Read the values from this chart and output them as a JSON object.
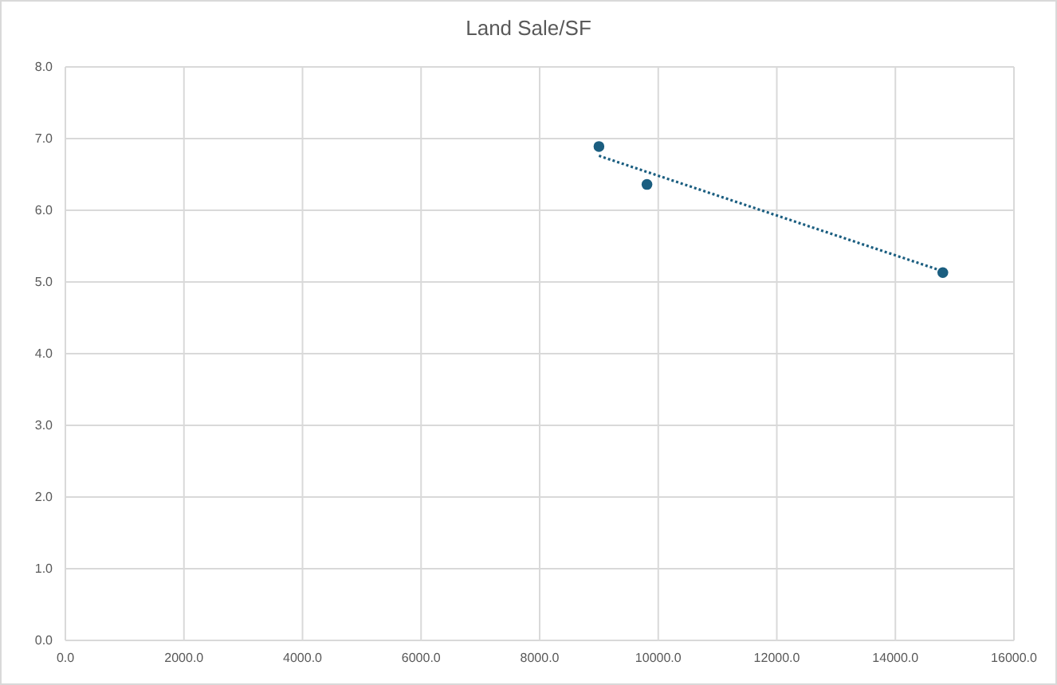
{
  "chart_data": {
    "type": "scatter",
    "title": "Land Sale/SF",
    "xlim": [
      0,
      16000
    ],
    "ylim": [
      0,
      8
    ],
    "xticks": [
      {
        "value": 0,
        "label": "0.0"
      },
      {
        "value": 2000,
        "label": "2000.0"
      },
      {
        "value": 4000,
        "label": "4000.0"
      },
      {
        "value": 6000,
        "label": "6000.0"
      },
      {
        "value": 8000,
        "label": "8000.0"
      },
      {
        "value": 10000,
        "label": "10000.0"
      },
      {
        "value": 12000,
        "label": "12000.0"
      },
      {
        "value": 14000,
        "label": "14000.0"
      },
      {
        "value": 16000,
        "label": "16000.0"
      }
    ],
    "yticks": [
      {
        "value": 0,
        "label": "0.0"
      },
      {
        "value": 1,
        "label": "1.0"
      },
      {
        "value": 2,
        "label": "2.0"
      },
      {
        "value": 3,
        "label": "3.0"
      },
      {
        "value": 4,
        "label": "4.0"
      },
      {
        "value": 5,
        "label": "5.0"
      },
      {
        "value": 6,
        "label": "6.0"
      },
      {
        "value": 7,
        "label": "7.0"
      },
      {
        "value": 8,
        "label": "8.0"
      }
    ],
    "grid": true,
    "series": [
      {
        "color": "#1b5e80",
        "marker": "circle",
        "x": [
          9000,
          9810,
          14800
        ],
        "values": [
          6.89,
          6.36,
          5.13
        ]
      },
      {
        "type": "line",
        "color": "#1b5e80",
        "line_style": "dotted",
        "marker": "none",
        "x": [
          9000,
          14800
        ],
        "values": [
          6.76,
          5.15
        ]
      }
    ]
  }
}
